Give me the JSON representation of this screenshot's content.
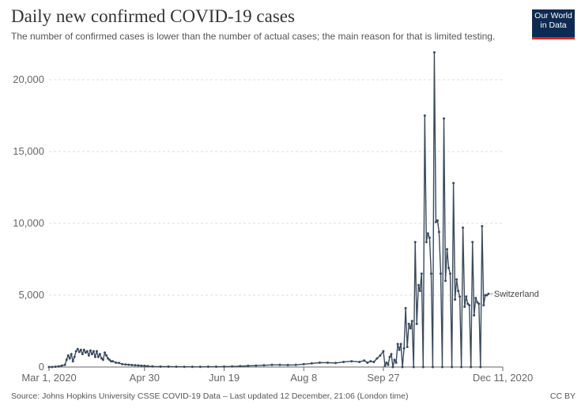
{
  "header": {
    "title": "Daily new confirmed COVID-19 cases",
    "subtitle": "The number of confirmed cases is lower than the number of actual cases; the main reason for that is limited testing."
  },
  "logo": {
    "line1": "Our World",
    "line2": "in Data"
  },
  "footer": {
    "source": "Source: Johns Hopkins University CSSE COVID-19 Data – Last updated 12 December, 21:06 (London time)",
    "license": "CC BY"
  },
  "colors": {
    "series": "#3b4a5c",
    "grid": "#dddddd",
    "axis": "#666666",
    "logo_bg": "#0d2b52",
    "logo_accent": "#d42b21"
  },
  "chart_data": {
    "type": "line",
    "title": "Daily new confirmed COVID-19 cases",
    "xlabel": "",
    "ylabel": "",
    "ylim": [
      0,
      20000
    ],
    "yticks": [
      0,
      5000,
      10000,
      15000,
      20000
    ],
    "ytick_labels": [
      "0",
      "5,000",
      "10,000",
      "15,000",
      "20,000"
    ],
    "xticks": [
      0,
      60,
      110,
      160,
      210,
      285
    ],
    "xtick_labels": [
      "Mar 1, 2020",
      "Apr 30",
      "Jun 19",
      "Aug 8",
      "Sep 27",
      "Dec 11, 2020"
    ],
    "x_unit": "days since Mar 1, 2020",
    "grid": true,
    "series": [
      {
        "name": "Switzerland",
        "label": "Switzerland",
        "points": [
          [
            0,
            0
          ],
          [
            2,
            0
          ],
          [
            4,
            20
          ],
          [
            6,
            40
          ],
          [
            8,
            100
          ],
          [
            10,
            150
          ],
          [
            11,
            500
          ],
          [
            12,
            800
          ],
          [
            13,
            600
          ],
          [
            14,
            900
          ],
          [
            15,
            400
          ],
          [
            16,
            700
          ],
          [
            17,
            1100
          ],
          [
            18,
            1250
          ],
          [
            19,
            1050
          ],
          [
            20,
            1200
          ],
          [
            21,
            900
          ],
          [
            22,
            1200
          ],
          [
            23,
            1000
          ],
          [
            24,
            1100
          ],
          [
            25,
            800
          ],
          [
            26,
            1150
          ],
          [
            27,
            900
          ],
          [
            28,
            1100
          ],
          [
            29,
            700
          ],
          [
            30,
            1100
          ],
          [
            31,
            700
          ],
          [
            32,
            900
          ],
          [
            33,
            600
          ],
          [
            34,
            500
          ],
          [
            35,
            1000
          ],
          [
            36,
            800
          ],
          [
            37,
            600
          ],
          [
            38,
            500
          ],
          [
            39,
            400
          ],
          [
            40,
            400
          ],
          [
            42,
            300
          ],
          [
            44,
            280
          ],
          [
            46,
            200
          ],
          [
            48,
            180
          ],
          [
            50,
            160
          ],
          [
            52,
            140
          ],
          [
            54,
            120
          ],
          [
            56,
            110
          ],
          [
            58,
            90
          ],
          [
            60,
            80
          ],
          [
            62,
            60
          ],
          [
            65,
            40
          ],
          [
            70,
            30
          ],
          [
            75,
            25
          ],
          [
            80,
            20
          ],
          [
            85,
            15
          ],
          [
            90,
            15
          ],
          [
            95,
            10
          ],
          [
            100,
            20
          ],
          [
            105,
            20
          ],
          [
            110,
            30
          ],
          [
            115,
            40
          ],
          [
            120,
            60
          ],
          [
            125,
            80
          ],
          [
            130,
            100
          ],
          [
            135,
            120
          ],
          [
            140,
            150
          ],
          [
            145,
            150
          ],
          [
            150,
            140
          ],
          [
            155,
            150
          ],
          [
            160,
            200
          ],
          [
            165,
            250
          ],
          [
            170,
            300
          ],
          [
            175,
            300
          ],
          [
            180,
            280
          ],
          [
            185,
            350
          ],
          [
            190,
            400
          ],
          [
            195,
            350
          ],
          [
            198,
            450
          ],
          [
            200,
            300
          ],
          [
            202,
            400
          ],
          [
            204,
            350
          ],
          [
            206,
            600
          ],
          [
            208,
            800
          ],
          [
            210,
            1100
          ],
          [
            211,
            100
          ],
          [
            212,
            300
          ],
          [
            213,
            150
          ],
          [
            214,
            700
          ],
          [
            215,
            900
          ],
          [
            216,
            0
          ],
          [
            217,
            500
          ],
          [
            218,
            300
          ],
          [
            219,
            1600
          ],
          [
            220,
            1200
          ],
          [
            221,
            1600
          ],
          [
            222,
            0
          ],
          [
            223,
            1300
          ],
          [
            224,
            4100
          ],
          [
            225,
            1400
          ],
          [
            226,
            3000
          ],
          [
            227,
            2700
          ],
          [
            228,
            3200
          ],
          [
            229,
            0
          ],
          [
            230,
            8700
          ],
          [
            231,
            3000
          ],
          [
            232,
            5700
          ],
          [
            233,
            5300
          ],
          [
            234,
            6500
          ],
          [
            235,
            0
          ],
          [
            236,
            17500
          ],
          [
            237,
            8700
          ],
          [
            238,
            9300
          ],
          [
            239,
            9000
          ],
          [
            240,
            6500
          ],
          [
            241,
            0
          ],
          [
            242,
            21900
          ],
          [
            243,
            10100
          ],
          [
            244,
            10200
          ],
          [
            245,
            9400
          ],
          [
            246,
            6500
          ],
          [
            247,
            0
          ],
          [
            248,
            17300
          ],
          [
            249,
            6000
          ],
          [
            250,
            8200
          ],
          [
            251,
            6900
          ],
          [
            252,
            6500
          ],
          [
            253,
            0
          ],
          [
            254,
            12800
          ],
          [
            255,
            4700
          ],
          [
            256,
            6100
          ],
          [
            257,
            5300
          ],
          [
            258,
            4900
          ],
          [
            259,
            0
          ],
          [
            260,
            9700
          ],
          [
            261,
            4200
          ],
          [
            262,
            4900
          ],
          [
            263,
            4400
          ],
          [
            264,
            4300
          ],
          [
            265,
            0
          ],
          [
            266,
            8700
          ],
          [
            267,
            3600
          ],
          [
            268,
            4800
          ],
          [
            269,
            4500
          ],
          [
            270,
            4400
          ],
          [
            271,
            0
          ],
          [
            272,
            9800
          ],
          [
            273,
            4300
          ],
          [
            274,
            5000
          ],
          [
            275,
            5000
          ],
          [
            276,
            5100
          ]
        ]
      }
    ]
  }
}
